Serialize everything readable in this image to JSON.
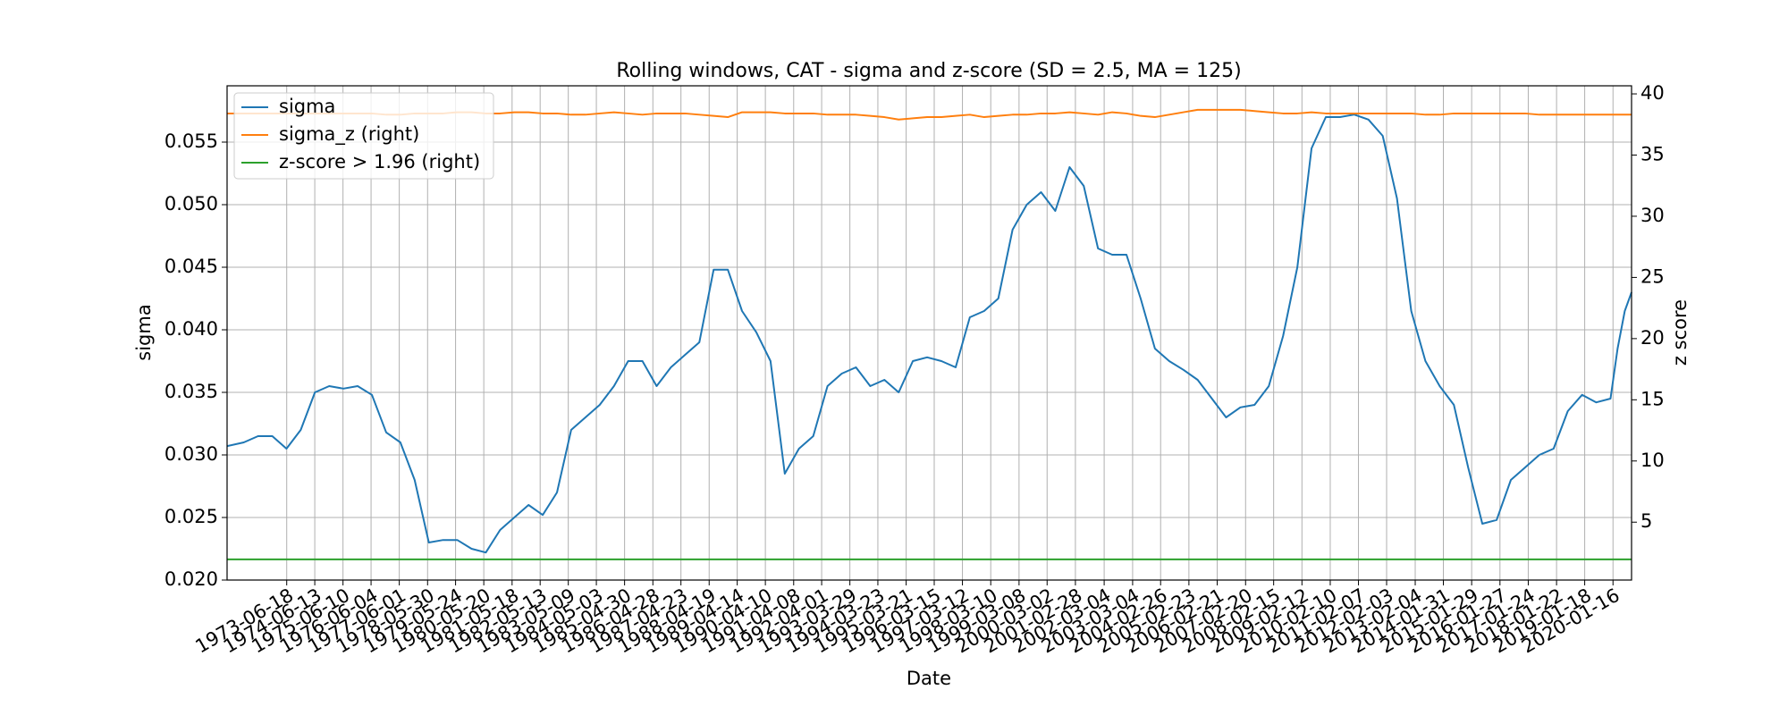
{
  "chart_data": {
    "type": "line",
    "title": "Rolling windows, CAT - sigma and z-score (SD = 2.5, MA = 125)",
    "xlabel": "Date",
    "ylabel": "sigma",
    "y2label": "z score",
    "x": [
      "1971-05-15",
      "1971-12-15",
      "1972-06-15",
      "1972-12-15",
      "1973-06-15",
      "1973-12-15",
      "1974-06-15",
      "1974-12-15",
      "1975-06-15",
      "1975-12-15",
      "1976-06-15",
      "1976-12-15",
      "1977-06-15",
      "1977-12-15",
      "1978-06-15",
      "1978-12-15",
      "1979-06-15",
      "1979-12-15",
      "1980-06-15",
      "1980-12-15",
      "1981-06-15",
      "1981-12-15",
      "1982-06-15",
      "1982-12-15",
      "1983-06-15",
      "1983-12-15",
      "1984-06-15",
      "1984-12-15",
      "1985-06-15",
      "1985-12-15",
      "1986-06-15",
      "1986-12-15",
      "1987-06-15",
      "1987-12-15",
      "1988-06-15",
      "1988-12-15",
      "1989-06-15",
      "1989-12-15",
      "1990-06-15",
      "1990-12-15",
      "1991-06-15",
      "1991-12-15",
      "1992-06-15",
      "1992-12-15",
      "1993-06-15",
      "1993-12-15",
      "1994-06-15",
      "1994-12-15",
      "1995-06-15",
      "1995-12-15",
      "1996-06-15",
      "1996-12-15",
      "1997-06-15",
      "1997-12-15",
      "1998-06-15",
      "1998-12-15",
      "1999-06-15",
      "1999-12-15",
      "2000-06-15",
      "2000-12-15",
      "2001-06-15",
      "2001-12-15",
      "2002-06-15",
      "2002-12-15",
      "2003-06-15",
      "2003-12-15",
      "2004-06-15",
      "2004-12-15",
      "2005-06-15",
      "2005-12-15",
      "2006-06-15",
      "2006-12-15",
      "2007-06-15",
      "2007-12-15",
      "2008-06-15",
      "2008-12-15",
      "2009-06-15",
      "2009-12-15",
      "2010-06-15",
      "2010-12-15",
      "2011-06-15",
      "2011-12-15",
      "2012-06-15",
      "2012-12-15",
      "2013-06-15",
      "2013-12-15",
      "2014-06-15",
      "2014-12-15",
      "2015-06-15",
      "2015-12-15",
      "2016-06-15",
      "2016-12-15",
      "2017-06-15",
      "2017-12-15",
      "2018-06-15",
      "2018-12-15",
      "2019-06-15",
      "2019-12-15",
      "2020-03-15",
      "2020-06-15",
      "2020-09-10"
    ],
    "series": [
      {
        "name": "sigma",
        "color": "#1f77b4",
        "values": [
          0.0307,
          0.031,
          0.0315,
          0.0315,
          0.0305,
          0.032,
          0.035,
          0.0355,
          0.0353,
          0.0355,
          0.0348,
          0.0318,
          0.031,
          0.028,
          0.023,
          0.0232,
          0.0232,
          0.0225,
          0.0222,
          0.024,
          0.025,
          0.026,
          0.0252,
          0.027,
          0.032,
          0.033,
          0.034,
          0.0355,
          0.0375,
          0.0375,
          0.0355,
          0.037,
          0.038,
          0.039,
          0.0448,
          0.0448,
          0.0415,
          0.0398,
          0.0375,
          0.0285,
          0.0305,
          0.0315,
          0.0355,
          0.0365,
          0.037,
          0.0355,
          0.036,
          0.035,
          0.0375,
          0.0378,
          0.0375,
          0.037,
          0.041,
          0.0415,
          0.0425,
          0.048,
          0.05,
          0.051,
          0.0495,
          0.053,
          0.0515,
          0.0465,
          0.046,
          0.046,
          0.0425,
          0.0385,
          0.0375,
          0.0368,
          0.036,
          0.0345,
          0.033,
          0.0338,
          0.034,
          0.0355,
          0.0395,
          0.045,
          0.0545,
          0.057,
          0.057,
          0.0572,
          0.0568,
          0.0555,
          0.0505,
          0.0415,
          0.0375,
          0.0355,
          0.034,
          0.029,
          0.0245,
          0.0248,
          0.028,
          0.029,
          0.03,
          0.0305,
          0.0335,
          0.0348,
          0.0342,
          0.0345,
          0.0385,
          0.0415,
          0.043
        ]
      },
      {
        "name": "sigma_z (right)",
        "color": "#ff7f0e",
        "axis": "y2",
        "values": [
          38.4,
          38.4,
          38.4,
          38.4,
          38.4,
          38.4,
          38.4,
          38.4,
          38.4,
          38.4,
          38.4,
          38.3,
          38.3,
          38.4,
          38.4,
          38.4,
          38.5,
          38.5,
          38.4,
          38.4,
          38.5,
          38.5,
          38.4,
          38.4,
          38.3,
          38.3,
          38.4,
          38.5,
          38.4,
          38.3,
          38.4,
          38.4,
          38.4,
          38.3,
          38.2,
          38.1,
          38.5,
          38.5,
          38.5,
          38.4,
          38.4,
          38.4,
          38.3,
          38.3,
          38.3,
          38.2,
          38.1,
          37.9,
          38.0,
          38.1,
          38.1,
          38.2,
          38.3,
          38.1,
          38.2,
          38.3,
          38.3,
          38.4,
          38.4,
          38.5,
          38.4,
          38.3,
          38.5,
          38.4,
          38.2,
          38.1,
          38.3,
          38.5,
          38.7,
          38.7,
          38.7,
          38.7,
          38.6,
          38.5,
          38.4,
          38.4,
          38.5,
          38.4,
          38.4,
          38.4,
          38.4,
          38.4,
          38.4,
          38.4,
          38.3,
          38.3,
          38.4,
          38.4,
          38.4,
          38.4,
          38.4,
          38.4,
          38.3,
          38.3,
          38.3,
          38.3,
          38.3,
          38.3,
          38.3,
          38.3,
          38.3
        ]
      },
      {
        "name": "z-score > 1.96 (right)",
        "color": "#2ca02c",
        "axis": "y2",
        "values": [
          1.96,
          1.96,
          1.96,
          1.96,
          1.96,
          1.96,
          1.96,
          1.96,
          1.96,
          1.96,
          1.96,
          1.96,
          1.96,
          1.96,
          1.96,
          1.96,
          1.96,
          1.96,
          1.96,
          1.96,
          1.96,
          1.96,
          1.96,
          1.96,
          1.96,
          1.96,
          1.96,
          1.96,
          1.96,
          1.96,
          1.96,
          1.96,
          1.96,
          1.96,
          1.96,
          1.96,
          1.96,
          1.96,
          1.96,
          1.96,
          1.96,
          1.96,
          1.96,
          1.96,
          1.96,
          1.96,
          1.96,
          1.96,
          1.96,
          1.96,
          1.96,
          1.96,
          1.96,
          1.96,
          1.96,
          1.96,
          1.96,
          1.96,
          1.96,
          1.96,
          1.96,
          1.96,
          1.96,
          1.96,
          1.96,
          1.96,
          1.96,
          1.96,
          1.96,
          1.96,
          1.96,
          1.96,
          1.96,
          1.96,
          1.96,
          1.96,
          1.96,
          1.96,
          1.96,
          1.96,
          1.96,
          1.96,
          1.96,
          1.96,
          1.96,
          1.96,
          1.96,
          1.96,
          1.96,
          1.96,
          1.96,
          1.96,
          1.96,
          1.96,
          1.96,
          1.96,
          1.96,
          1.96,
          1.96,
          1.96,
          1.96
        ]
      }
    ],
    "xlim": [
      "1971-05-15",
      "2020-09-10"
    ],
    "xticks": [
      "1973-06-18",
      "1974-06-13",
      "1975-06-10",
      "1976-06-04",
      "1977-06-01",
      "1978-05-30",
      "1979-05-24",
      "1980-05-20",
      "1981-05-18",
      "1982-05-13",
      "1983-05-09",
      "1984-05-03",
      "1985-04-30",
      "1986-04-28",
      "1987-04-23",
      "1988-04-19",
      "1989-04-14",
      "1990-04-10",
      "1991-04-08",
      "1992-04-01",
      "1993-03-29",
      "1994-03-23",
      "1995-03-21",
      "1996-03-15",
      "1997-03-12",
      "1998-03-10",
      "1999-03-08",
      "2000-03-02",
      "2001-02-28",
      "2002-03-04",
      "2003-03-04",
      "2004-02-26",
      "2005-02-23",
      "2006-02-21",
      "2007-02-20",
      "2008-02-15",
      "2009-02-12",
      "2010-02-10",
      "2011-02-07",
      "2012-02-03",
      "2013-02-04",
      "2014-01-31",
      "2015-01-29",
      "2016-01-27",
      "2017-01-24",
      "2018-01-22",
      "2019-01-18",
      "2020-01-16"
    ],
    "ylim": [
      0.02,
      0.0595
    ],
    "yticks": [
      {
        "value": 0.02,
        "label": "0.020"
      },
      0.025,
      {
        "value": 0.03,
        "label": "0.030"
      },
      0.035,
      {
        "value": 0.04,
        "label": "0.040"
      },
      0.045,
      {
        "value": 0.05,
        "label": "0.050"
      },
      0.055
    ],
    "y2lim": [
      0.27,
      40.66
    ],
    "y2ticks": [
      5,
      10,
      15,
      20,
      25,
      30,
      35,
      40
    ],
    "grid": true,
    "legend": "upper left"
  }
}
